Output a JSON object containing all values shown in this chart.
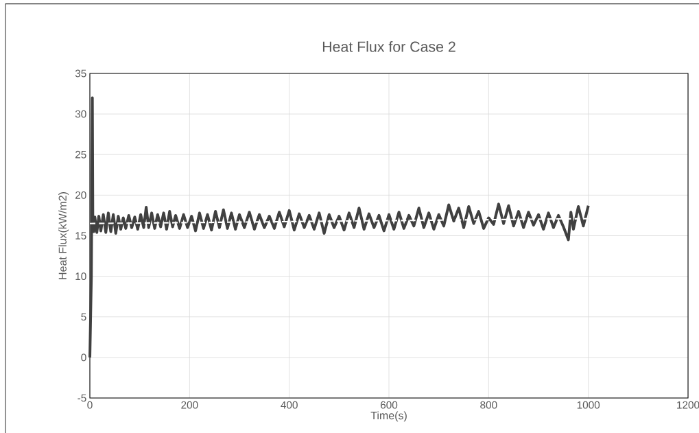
{
  "chart_data": {
    "type": "line",
    "title": "Heat Flux for Case 2",
    "xlabel": "Time(s)",
    "ylabel": "Heat Flux(kW/m2)",
    "xlim": [
      0,
      1200
    ],
    "xticks": [
      0,
      200,
      400,
      600,
      800,
      1000,
      1200
    ],
    "ylim": [
      -5,
      35
    ],
    "yticks": [
      -5,
      0,
      5,
      10,
      15,
      20,
      25,
      30,
      35
    ],
    "grid": true,
    "marker": "none",
    "series": [
      {
        "color": "#404040",
        "line_style": "solid",
        "x": [
          0,
          3,
          5,
          6,
          8,
          10,
          14,
          18,
          22,
          27,
          32,
          37,
          42,
          47,
          52,
          57,
          62,
          67,
          72,
          78,
          84,
          90,
          96,
          102,
          108,
          113,
          118,
          124,
          130,
          136,
          142,
          148,
          154,
          160,
          166,
          172,
          180,
          188,
          196,
          204,
          212,
          220,
          228,
          236,
          244,
          252,
          260,
          268,
          276,
          284,
          292,
          300,
          310,
          320,
          330,
          340,
          350,
          360,
          370,
          380,
          390,
          400,
          410,
          420,
          430,
          440,
          450,
          460,
          470,
          480,
          490,
          500,
          510,
          520,
          530,
          540,
          550,
          560,
          570,
          580,
          590,
          600,
          610,
          620,
          630,
          640,
          650,
          660,
          670,
          680,
          690,
          700,
          710,
          720,
          730,
          740,
          750,
          760,
          770,
          780,
          790,
          800,
          810,
          820,
          830,
          840,
          850,
          860,
          870,
          880,
          890,
          900,
          910,
          920,
          930,
          940,
          950,
          960,
          965,
          970,
          980,
          990,
          1000
        ],
        "values": [
          0,
          10,
          32,
          16,
          15.5,
          17.3,
          15.4,
          17.4,
          15.6,
          17.6,
          15.4,
          17.8,
          15.5,
          17.6,
          15.3,
          17.4,
          15.8,
          17.2,
          15.9,
          17.5,
          16.0,
          17.3,
          15.8,
          17.6,
          16.0,
          18.5,
          16.0,
          17.8,
          15.9,
          17.6,
          16.1,
          17.8,
          15.8,
          18.0,
          16.1,
          17.5,
          15.9,
          17.6,
          16.0,
          17.4,
          15.6,
          17.8,
          15.9,
          17.6,
          15.7,
          18.0,
          16.0,
          18.2,
          15.9,
          17.8,
          15.8,
          17.6,
          16.0,
          17.9,
          15.8,
          17.6,
          16.0,
          17.4,
          15.9,
          17.9,
          16.1,
          18.1,
          15.7,
          17.7,
          16.0,
          17.5,
          15.8,
          17.8,
          15.3,
          17.6,
          16.0,
          17.4,
          15.7,
          17.8,
          16.0,
          18.4,
          15.8,
          17.7,
          16.0,
          17.5,
          15.6,
          17.6,
          15.8,
          17.9,
          15.9,
          17.5,
          16.2,
          18.4,
          16.0,
          17.8,
          15.8,
          17.6,
          16.2,
          18.8,
          16.8,
          18.4,
          16.0,
          18.6,
          16.5,
          18.0,
          15.9,
          17.2,
          16.4,
          18.9,
          16.5,
          18.7,
          16.2,
          18.0,
          16.0,
          17.9,
          16.3,
          17.6,
          15.8,
          17.8,
          16.0,
          17.5,
          16.1,
          14.5,
          17.9,
          15.8,
          18.6,
          16.2,
          18.7
        ]
      },
      {
        "type": "line",
        "color": "#ffffff",
        "line_style": "dashed",
        "x": [
          0,
          1000
        ],
        "values": [
          16.5,
          17.1
        ]
      }
    ]
  }
}
